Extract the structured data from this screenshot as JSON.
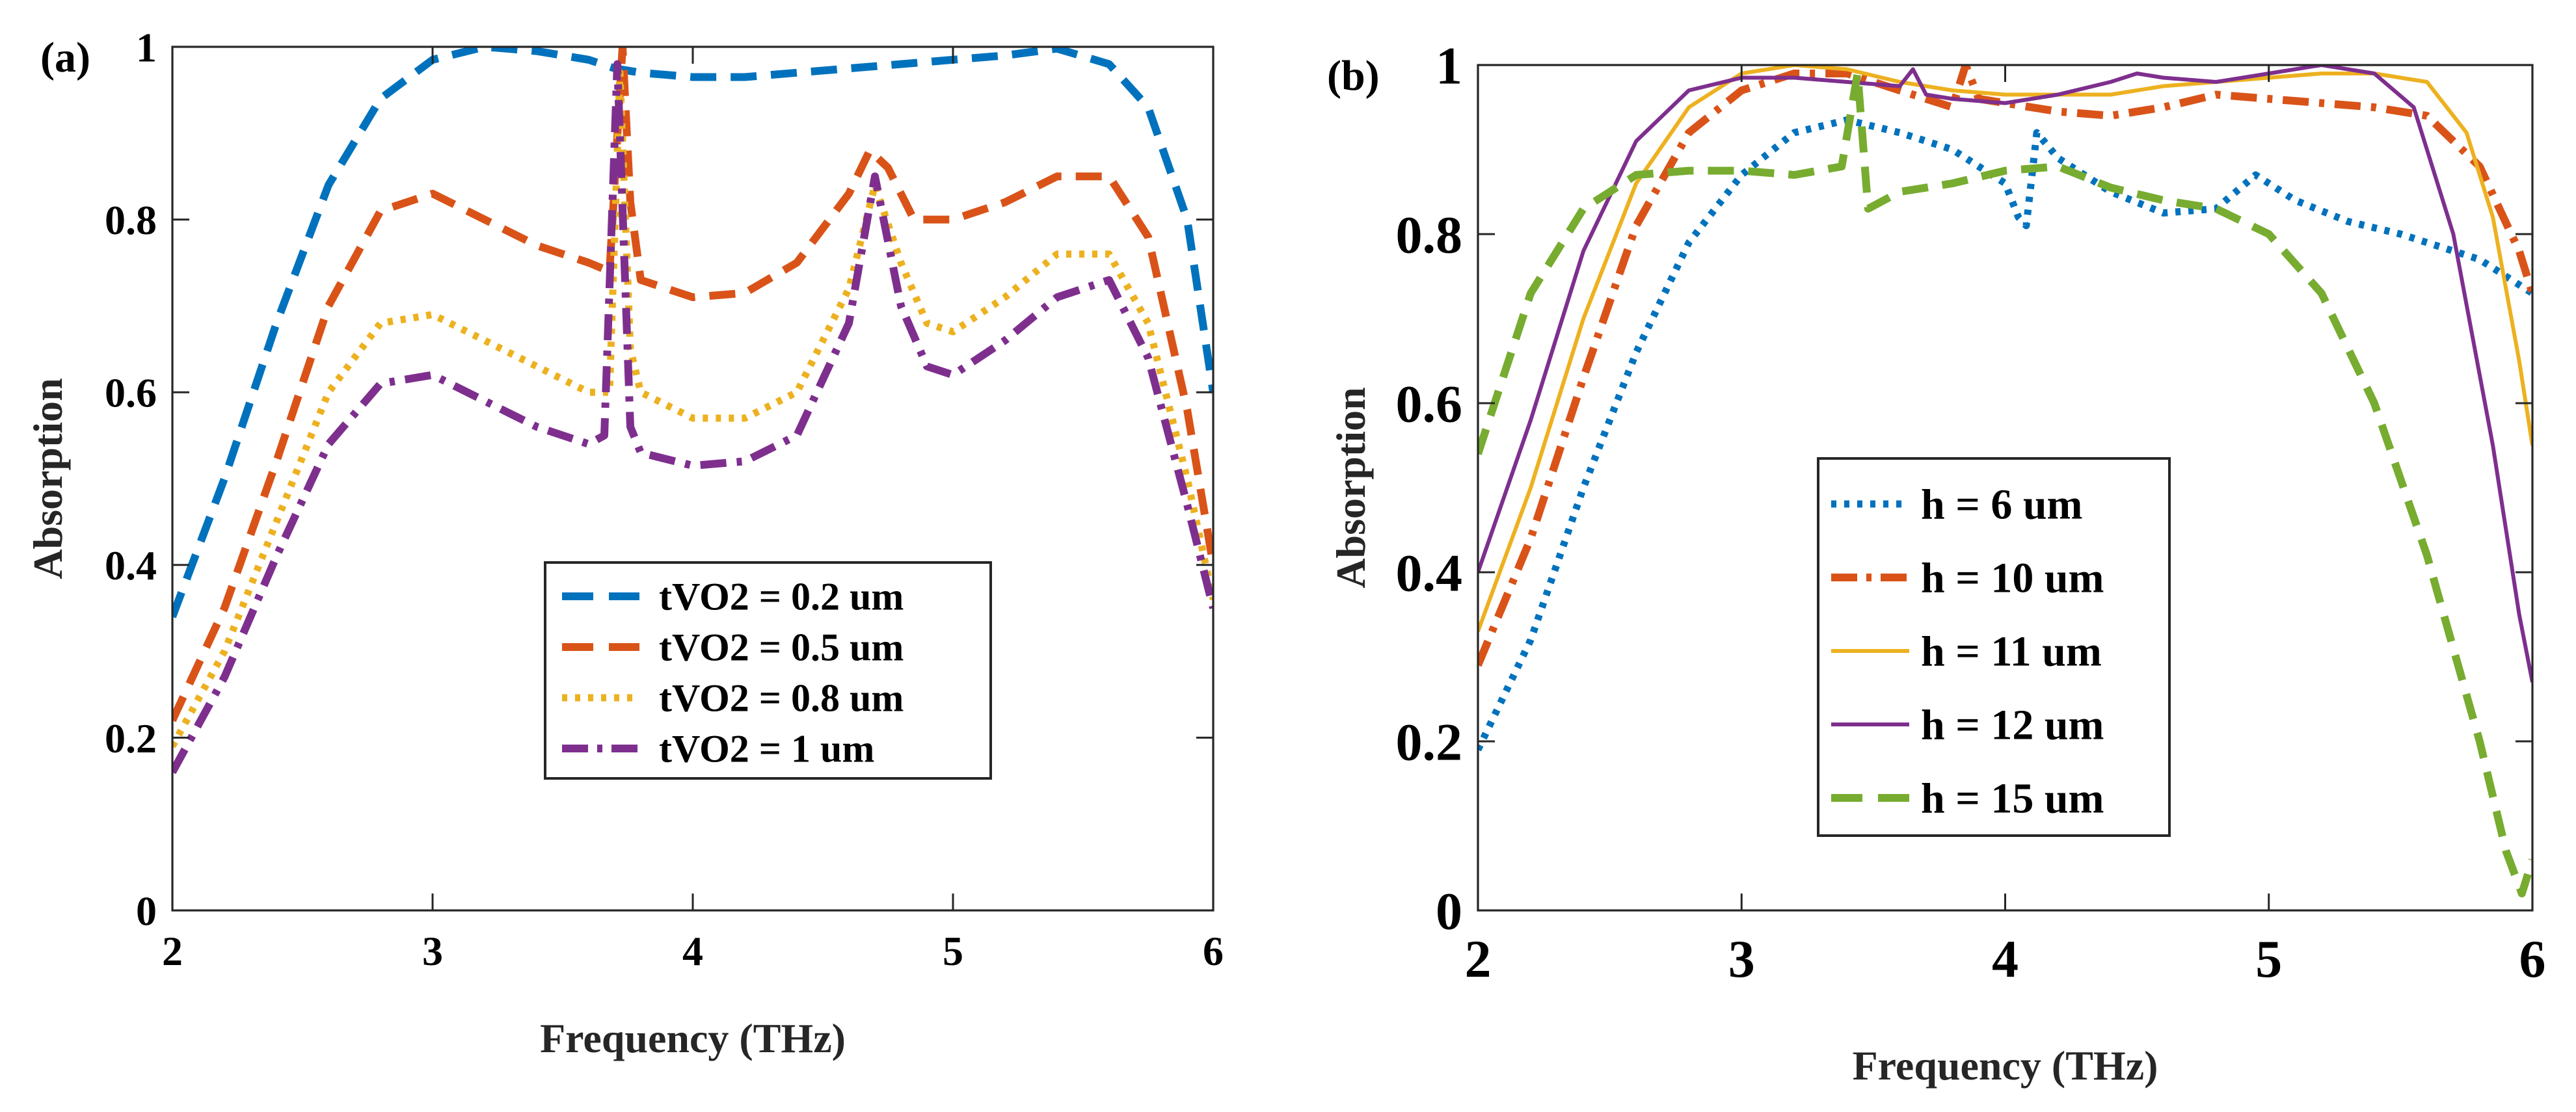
{
  "chart_data": [
    {
      "panel_label": "(a)",
      "type": "line",
      "xlabel": "Frequency (THz)",
      "ylabel": "Absorption",
      "xlim": [
        2,
        6
      ],
      "ylim": [
        0,
        1
      ],
      "xticks": [
        2,
        3,
        4,
        5,
        6
      ],
      "yticks": [
        0,
        0.2,
        0.4,
        0.6,
        0.8,
        1
      ],
      "ytick_labels": [
        "0",
        "0.2",
        "0.4",
        "0.6",
        "0.8",
        "1"
      ],
      "grid": false,
      "legend_position": "lower-center",
      "series": [
        {
          "name": "tVO2 = 0.2 um",
          "color": "#0072BD",
          "style": "dashed",
          "points": [
            [
              2.0,
              0.34
            ],
            [
              2.2,
              0.5
            ],
            [
              2.4,
              0.68
            ],
            [
              2.6,
              0.84
            ],
            [
              2.8,
              0.94
            ],
            [
              3.0,
              0.985
            ],
            [
              3.2,
              1.0
            ],
            [
              3.4,
              0.995
            ],
            [
              3.6,
              0.985
            ],
            [
              3.7,
              0.975
            ],
            [
              3.8,
              0.97
            ],
            [
              4.0,
              0.965
            ],
            [
              4.2,
              0.965
            ],
            [
              4.4,
              0.97
            ],
            [
              4.6,
              0.975
            ],
            [
              4.8,
              0.98
            ],
            [
              5.0,
              0.985
            ],
            [
              5.2,
              0.99
            ],
            [
              5.4,
              0.998
            ],
            [
              5.6,
              0.98
            ],
            [
              5.75,
              0.93
            ],
            [
              5.9,
              0.8
            ],
            [
              6.0,
              0.6
            ]
          ]
        },
        {
          "name": "tVO2 = 0.5 um",
          "color": "#D95319",
          "style": "dashed",
          "points": [
            [
              2.0,
              0.22
            ],
            [
              2.2,
              0.35
            ],
            [
              2.4,
              0.52
            ],
            [
              2.6,
              0.7
            ],
            [
              2.8,
              0.81
            ],
            [
              3.0,
              0.83
            ],
            [
              3.2,
              0.8
            ],
            [
              3.4,
              0.77
            ],
            [
              3.6,
              0.75
            ],
            [
              3.68,
              0.74
            ],
            [
              3.73,
              1.0
            ],
            [
              3.76,
              0.82
            ],
            [
              3.8,
              0.73
            ],
            [
              4.0,
              0.71
            ],
            [
              4.2,
              0.715
            ],
            [
              4.4,
              0.75
            ],
            [
              4.6,
              0.83
            ],
            [
              4.68,
              0.88
            ],
            [
              4.75,
              0.86
            ],
            [
              4.85,
              0.8
            ],
            [
              5.0,
              0.8
            ],
            [
              5.2,
              0.82
            ],
            [
              5.4,
              0.85
            ],
            [
              5.6,
              0.85
            ],
            [
              5.75,
              0.78
            ],
            [
              5.9,
              0.58
            ],
            [
              6.0,
              0.4
            ]
          ]
        },
        {
          "name": "tVO2 = 0.8 um",
          "color": "#EDB120",
          "style": "dotted",
          "points": [
            [
              2.0,
              0.19
            ],
            [
              2.2,
              0.3
            ],
            [
              2.4,
              0.45
            ],
            [
              2.6,
              0.6
            ],
            [
              2.8,
              0.68
            ],
            [
              3.0,
              0.69
            ],
            [
              3.2,
              0.66
            ],
            [
              3.4,
              0.63
            ],
            [
              3.6,
              0.6
            ],
            [
              3.68,
              0.6
            ],
            [
              3.72,
              0.97
            ],
            [
              3.76,
              0.65
            ],
            [
              3.8,
              0.6
            ],
            [
              4.0,
              0.57
            ],
            [
              4.2,
              0.57
            ],
            [
              4.4,
              0.6
            ],
            [
              4.6,
              0.72
            ],
            [
              4.7,
              0.84
            ],
            [
              4.8,
              0.75
            ],
            [
              4.9,
              0.68
            ],
            [
              5.0,
              0.67
            ],
            [
              5.2,
              0.71
            ],
            [
              5.4,
              0.76
            ],
            [
              5.6,
              0.76
            ],
            [
              5.75,
              0.68
            ],
            [
              5.9,
              0.5
            ],
            [
              6.0,
              0.36
            ]
          ]
        },
        {
          "name": "tVO2 = 1 um",
          "color": "#7E2F8E",
          "style": "dashdot",
          "points": [
            [
              2.0,
              0.16
            ],
            [
              2.2,
              0.27
            ],
            [
              2.4,
              0.41
            ],
            [
              2.6,
              0.54
            ],
            [
              2.8,
              0.61
            ],
            [
              3.0,
              0.62
            ],
            [
              3.2,
              0.59
            ],
            [
              3.4,
              0.56
            ],
            [
              3.6,
              0.54
            ],
            [
              3.66,
              0.55
            ],
            [
              3.71,
              0.98
            ],
            [
              3.76,
              0.56
            ],
            [
              3.8,
              0.53
            ],
            [
              4.0,
              0.515
            ],
            [
              4.2,
              0.52
            ],
            [
              4.4,
              0.55
            ],
            [
              4.6,
              0.68
            ],
            [
              4.7,
              0.85
            ],
            [
              4.8,
              0.7
            ],
            [
              4.9,
              0.63
            ],
            [
              5.0,
              0.62
            ],
            [
              5.2,
              0.66
            ],
            [
              5.4,
              0.71
            ],
            [
              5.6,
              0.73
            ],
            [
              5.75,
              0.64
            ],
            [
              5.9,
              0.47
            ],
            [
              6.0,
              0.35
            ]
          ]
        }
      ]
    },
    {
      "panel_label": "(b)",
      "type": "line",
      "xlabel": "Frequency (THz)",
      "ylabel": "Absorption",
      "xlim": [
        2,
        6
      ],
      "ylim": [
        0,
        1
      ],
      "xticks": [
        2,
        3,
        4,
        5,
        6
      ],
      "yticks": [
        0,
        0.2,
        0.4,
        0.6,
        0.8,
        1
      ],
      "ytick_labels": [
        "0",
        "0.2",
        "0.4",
        "0.6",
        "0.8",
        "1"
      ],
      "grid": false,
      "legend_position": "lower-center",
      "series": [
        {
          "name": "h = 6 um",
          "color": "#0072BD",
          "style": "dotted",
          "points": [
            [
              2.0,
              0.19
            ],
            [
              2.2,
              0.32
            ],
            [
              2.4,
              0.5
            ],
            [
              2.6,
              0.66
            ],
            [
              2.8,
              0.79
            ],
            [
              3.0,
              0.87
            ],
            [
              3.2,
              0.92
            ],
            [
              3.4,
              0.935
            ],
            [
              3.6,
              0.92
            ],
            [
              3.8,
              0.9
            ],
            [
              4.0,
              0.86
            ],
            [
              4.05,
              0.82
            ],
            [
              4.08,
              0.81
            ],
            [
              4.12,
              0.92
            ],
            [
              4.2,
              0.89
            ],
            [
              4.4,
              0.85
            ],
            [
              4.6,
              0.825
            ],
            [
              4.8,
              0.83
            ],
            [
              4.95,
              0.87
            ],
            [
              5.1,
              0.84
            ],
            [
              5.3,
              0.815
            ],
            [
              5.5,
              0.8
            ],
            [
              5.8,
              0.77
            ],
            [
              6.0,
              0.73
            ]
          ]
        },
        {
          "name": "h = 10 um",
          "color": "#D95319",
          "style": "dashdot",
          "points": [
            [
              2.0,
              0.29
            ],
            [
              2.2,
              0.44
            ],
            [
              2.4,
              0.63
            ],
            [
              2.6,
              0.81
            ],
            [
              2.8,
              0.92
            ],
            [
              3.0,
              0.97
            ],
            [
              3.2,
              0.99
            ],
            [
              3.4,
              0.99
            ],
            [
              3.6,
              0.97
            ],
            [
              3.8,
              0.95
            ],
            [
              3.85,
              1.0
            ],
            [
              3.9,
              0.96
            ],
            [
              4.0,
              0.955
            ],
            [
              4.2,
              0.945
            ],
            [
              4.4,
              0.94
            ],
            [
              4.6,
              0.95
            ],
            [
              4.8,
              0.965
            ],
            [
              5.0,
              0.96
            ],
            [
              5.2,
              0.955
            ],
            [
              5.4,
              0.95
            ],
            [
              5.6,
              0.94
            ],
            [
              5.8,
              0.88
            ],
            [
              5.95,
              0.78
            ],
            [
              6.0,
              0.73
            ]
          ]
        },
        {
          "name": "h = 11 um",
          "color": "#EDB120",
          "style": "solid",
          "points": [
            [
              2.0,
              0.33
            ],
            [
              2.2,
              0.5
            ],
            [
              2.4,
              0.7
            ],
            [
              2.6,
              0.86
            ],
            [
              2.8,
              0.95
            ],
            [
              3.0,
              0.99
            ],
            [
              3.2,
              1.0
            ],
            [
              3.4,
              0.995
            ],
            [
              3.6,
              0.98
            ],
            [
              3.8,
              0.97
            ],
            [
              4.0,
              0.965
            ],
            [
              4.2,
              0.965
            ],
            [
              4.4,
              0.965
            ],
            [
              4.6,
              0.975
            ],
            [
              4.8,
              0.98
            ],
            [
              5.0,
              0.985
            ],
            [
              5.2,
              0.99
            ],
            [
              5.4,
              0.99
            ],
            [
              5.6,
              0.98
            ],
            [
              5.75,
              0.92
            ],
            [
              5.85,
              0.82
            ],
            [
              5.95,
              0.65
            ],
            [
              6.0,
              0.55
            ]
          ]
        },
        {
          "name": "h = 12 um",
          "color": "#7E2F8E",
          "style": "solid",
          "points": [
            [
              2.0,
              0.4
            ],
            [
              2.2,
              0.58
            ],
            [
              2.4,
              0.78
            ],
            [
              2.6,
              0.91
            ],
            [
              2.8,
              0.97
            ],
            [
              3.0,
              0.985
            ],
            [
              3.2,
              0.985
            ],
            [
              3.4,
              0.98
            ],
            [
              3.6,
              0.975
            ],
            [
              3.65,
              0.995
            ],
            [
              3.7,
              0.965
            ],
            [
              3.8,
              0.96
            ],
            [
              4.0,
              0.955
            ],
            [
              4.2,
              0.965
            ],
            [
              4.4,
              0.98
            ],
            [
              4.5,
              0.99
            ],
            [
              4.6,
              0.985
            ],
            [
              4.8,
              0.98
            ],
            [
              5.0,
              0.99
            ],
            [
              5.2,
              1.0
            ],
            [
              5.4,
              0.99
            ],
            [
              5.55,
              0.95
            ],
            [
              5.7,
              0.8
            ],
            [
              5.85,
              0.55
            ],
            [
              5.95,
              0.35
            ],
            [
              6.0,
              0.27
            ]
          ]
        },
        {
          "name": "h = 15 um",
          "color": "#77AC30",
          "style": "dashed",
          "points": [
            [
              2.0,
              0.54
            ],
            [
              2.2,
              0.73
            ],
            [
              2.4,
              0.83
            ],
            [
              2.6,
              0.87
            ],
            [
              2.8,
              0.875
            ],
            [
              3.0,
              0.875
            ],
            [
              3.2,
              0.87
            ],
            [
              3.38,
              0.88
            ],
            [
              3.44,
              0.99
            ],
            [
              3.48,
              0.83
            ],
            [
              3.6,
              0.85
            ],
            [
              3.8,
              0.86
            ],
            [
              4.0,
              0.875
            ],
            [
              4.2,
              0.88
            ],
            [
              4.4,
              0.855
            ],
            [
              4.6,
              0.84
            ],
            [
              4.8,
              0.83
            ],
            [
              5.0,
              0.8
            ],
            [
              5.2,
              0.73
            ],
            [
              5.4,
              0.6
            ],
            [
              5.6,
              0.42
            ],
            [
              5.8,
              0.2
            ],
            [
              5.9,
              0.07
            ],
            [
              5.96,
              0.02
            ],
            [
              6.0,
              0.06
            ]
          ]
        }
      ]
    }
  ]
}
